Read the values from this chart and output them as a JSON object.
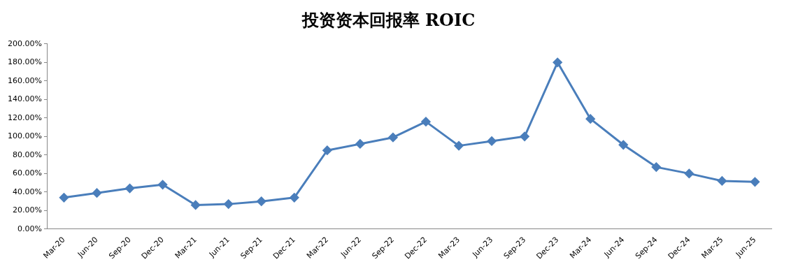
{
  "chart_data": {
    "type": "line",
    "title": "投资资本回报率 ROIC",
    "categories": [
      "Mar-20",
      "Jun-20",
      "Sep-20",
      "Dec-20",
      "Mar-21",
      "Jun-21",
      "Sep-21",
      "Dec-21",
      "Mar-22",
      "Jun-22",
      "Sep-22",
      "Dec-22",
      "Mar-23",
      "Jun-23",
      "Sep-23",
      "Dec-23",
      "Mar-24",
      "Jun-24",
      "Sep-24",
      "Dec-24",
      "Mar-25",
      "Jun-25"
    ],
    "series": [
      {
        "color": "#4a7ebb",
        "values": [
          34,
          39,
          44,
          48,
          26,
          27,
          30,
          34,
          85,
          92,
          99,
          116,
          90,
          95,
          100,
          180,
          119,
          91,
          67,
          60,
          52,
          51
        ]
      }
    ],
    "ylim": [
      0,
      200
    ],
    "yticks": [
      {
        "value": 0,
        "label": "0.00%"
      },
      {
        "value": 20,
        "label": "20.00%"
      },
      {
        "value": 40,
        "label": "40.00%"
      },
      {
        "value": 60,
        "label": "60.00%"
      },
      {
        "value": 80,
        "label": "80.00%"
      },
      {
        "value": 100,
        "label": "100.00%"
      },
      {
        "value": 120,
        "label": "120.00%"
      },
      {
        "value": 140,
        "label": "140.00%"
      },
      {
        "value": 160,
        "label": "160.00%"
      },
      {
        "value": 180,
        "label": "180.00%"
      },
      {
        "value": 200,
        "label": "200.00%"
      }
    ],
    "grid": false,
    "legend": false,
    "marker": "diamond",
    "line_style": "solid"
  }
}
